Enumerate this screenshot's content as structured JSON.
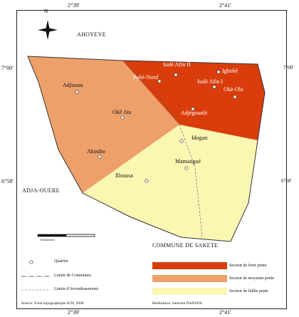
{
  "coords": {
    "top_left": "2°39'",
    "top_right": "2°41'",
    "bottom_left": "2°39'",
    "bottom_right": "2°41'",
    "left_upper": "7°00'",
    "right_upper": "7°00'",
    "left_lower": "6°58'",
    "right_lower": "6°58'"
  },
  "north_label": "N",
  "regions": {
    "north": "AHOYEYE",
    "west": "ADJA-OUERE",
    "south": "COMMUNE DE SAKETE"
  },
  "places": {
    "adjissou": "Adjissou",
    "oke_ata": "Okê Ata",
    "akouho": "Akouho",
    "illoussa": "Illoussa",
    "pobe_nord": "Pobè-Nord",
    "isale_afin_ii": "Isalè Afin II",
    "igbobe": "Igbobè",
    "isale_afin_i": "Isalè Afin I",
    "oke_ola": "Okè-Ola",
    "adjegounle": "Adjégounlè",
    "idogan": "Idogan",
    "mamangue": "Mamangué"
  },
  "scale_label": "Kilomètres",
  "legend": {
    "quartier": "Quartier",
    "limite_communes": "Limite de Communes",
    "limite_arrondissements": "Limite d'Arrondissements",
    "forte": "Secteur de forte pente",
    "moyenne": "Secteur de moyenne pente",
    "faible": "Secteur de faible pente"
  },
  "footer": {
    "source": "Source: Fond topographique IGN, 2000",
    "realisation": "Réalisation: Saturnin DANSOU"
  },
  "colors": {
    "forte": "#d93d0c",
    "moyenne": "#eea06a",
    "faible": "#fbf6b2"
  }
}
